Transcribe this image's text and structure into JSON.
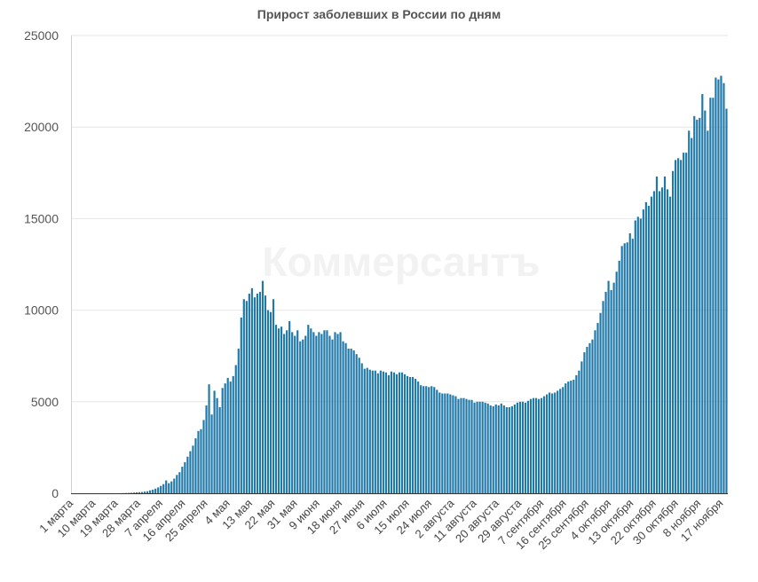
{
  "chart_data": {
    "type": "bar",
    "title": "Прирост заболевших в России по дням",
    "watermark": "Коммерсантъ",
    "xlabel": "",
    "ylabel": "",
    "ylim": [
      0,
      25000
    ],
    "yticks": [
      0,
      5000,
      10000,
      15000,
      20000,
      25000
    ],
    "grid": true,
    "legend": "none",
    "bar_color": "#1f78a8",
    "x_tick_labels": [
      "1 марта",
      "10 марта",
      "19 марта",
      "28 марта",
      "7 апреля",
      "16 апреля",
      "25 апреля",
      "4 мая",
      "13 мая",
      "22 мая",
      "31 мая",
      "9 июня",
      "18 июня",
      "27 июня",
      "6 июля",
      "15 июля",
      "24 июля",
      "2 августа",
      "11 августа",
      "20 августа",
      "29 августа",
      "7 сентября",
      "16 сентября",
      "25 сентября",
      "4 октября",
      "13 октября",
      "22 октября",
      "30 октября",
      "8 ноября",
      "17 ноября"
    ],
    "values": [
      0,
      0,
      0,
      0,
      0,
      0,
      0,
      0,
      0,
      0,
      0,
      0,
      0,
      0,
      0,
      0,
      0,
      2,
      5,
      10,
      15,
      20,
      30,
      40,
      50,
      60,
      70,
      90,
      110,
      160,
      200,
      250,
      320,
      400,
      500,
      700,
      550,
      650,
      800,
      1000,
      1150,
      1450,
      1700,
      2000,
      2300,
      2600,
      3000,
      3400,
      3500,
      4000,
      4800,
      5950,
      4300,
      5600,
      5200,
      4700,
      5750,
      6000,
      6300,
      6100,
      6400,
      7000,
      7900,
      9600,
      10600,
      10500,
      10900,
      11200,
      10700,
      10900,
      11000,
      11600,
      10800,
      10000,
      9900,
      10600,
      9200,
      9000,
      9100,
      8700,
      8900,
      9400,
      8800,
      8600,
      8900,
      8300,
      8400,
      8600,
      9200,
      9000,
      8800,
      8600,
      8800,
      8700,
      8900,
      8900,
      8600,
      8400,
      8800,
      8700,
      8800,
      8300,
      8200,
      7900,
      7900,
      7800,
      7600,
      7400,
      7100,
      6800,
      6850,
      6750,
      6700,
      6700,
      6550,
      6700,
      6650,
      6600,
      6450,
      6650,
      6600,
      6500,
      6600,
      6600,
      6500,
      6400,
      6350,
      6350,
      6250,
      6100,
      5900,
      5850,
      5850,
      5800,
      5850,
      5800,
      5650,
      5500,
      5450,
      5450,
      5450,
      5400,
      5350,
      5300,
      5150,
      5200,
      5200,
      5150,
      5100,
      5100,
      4950,
      5000,
      5000,
      5000,
      4950,
      4900,
      4800,
      4750,
      4850,
      4800,
      4900,
      4800,
      4700,
      4700,
      4750,
      4850,
      4950,
      5000,
      5000,
      4950,
      5050,
      5150,
      5200,
      5200,
      5150,
      5200,
      5300,
      5400,
      5500,
      5450,
      5500,
      5600,
      5700,
      5800,
      6000,
      6100,
      6150,
      6200,
      6450,
      6700,
      7200,
      7700,
      8000,
      8200,
      8400,
      8900,
      9300,
      9850,
      10500,
      11000,
      11600,
      11100,
      11500,
      12100,
      12700,
      13500,
      13650,
      13700,
      14200,
      13900,
      14900,
      15100,
      15000,
      15500,
      15900,
      15700,
      16200,
      16500,
      17300,
      16500,
      16700,
      17300,
      16600,
      16200,
      17600,
      18200,
      18300,
      18200,
      18600,
      18600,
      19800,
      19400,
      20600,
      20400,
      20500,
      21800,
      20900,
      19800,
      21600,
      21600,
      22700,
      22600,
      22800,
      22400,
      21000
    ]
  }
}
